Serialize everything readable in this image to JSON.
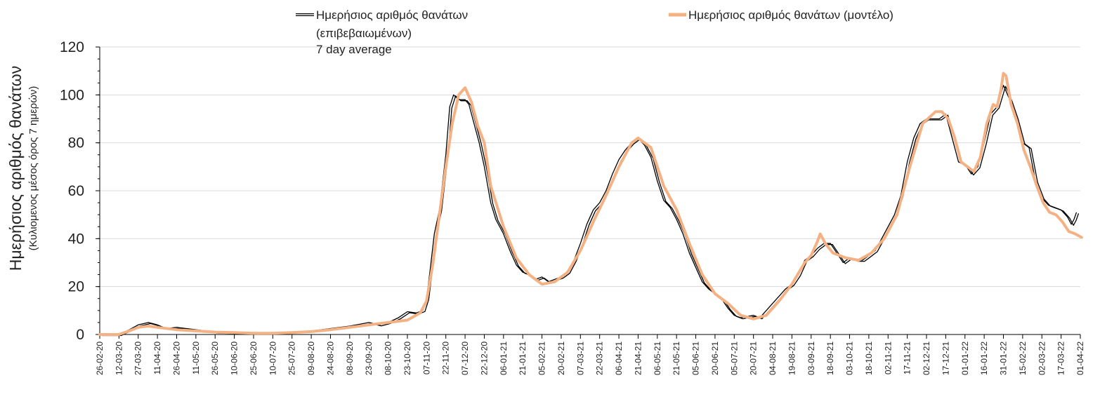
{
  "chart_data": {
    "type": "line",
    "ylabel": "Ημερήσιος αριθμός θανάτων",
    "ylabel_sub": "(Κυλιομενος μέσος όρος 7 ημερών)",
    "ylim": [
      0,
      120
    ],
    "yticks": [
      "0",
      "20",
      "40",
      "60",
      "80",
      "100",
      "120"
    ],
    "xticks": [
      "26-02-20",
      "12-03-20",
      "27-03-20",
      "11-04-20",
      "26-04-20",
      "11-05-20",
      "26-05-20",
      "10-06-20",
      "25-06-20",
      "10-07-20",
      "25-07-20",
      "09-08-20",
      "24-08-20",
      "08-09-20",
      "23-09-20",
      "08-10-20",
      "23-10-20",
      "07-11-20",
      "22-11-20",
      "07-12-20",
      "22-12-20",
      "06-01-21",
      "21-01-21",
      "05-02-21",
      "20-02-21",
      "07-03-21",
      "22-03-21",
      "06-04-21",
      "21-04-21",
      "06-05-21",
      "21-05-21",
      "05-06-21",
      "20-06-21",
      "05-07-21",
      "20-07-21",
      "04-08-21",
      "19-08-21",
      "03-09-21",
      "18-09-21",
      "03-10-21",
      "18-10-21",
      "02-11-21",
      "17-11-21",
      "02-12-21",
      "17-12-21",
      "01-01-22",
      "16-01-22",
      "31-01-22",
      "15-02-22",
      "02-03-22",
      "17-03-22",
      "01-04-22"
    ],
    "grid": true,
    "legend_position": "top",
    "series": [
      {
        "name": "Ημερήσιος αριθμός θανάτων (επιβεβαιωμένων) 7 day average",
        "legend_lines": [
          "Ημερήσιος αριθμός θανάτων",
          "(επιβεβαιωμένων)",
          "7 day average"
        ],
        "color": "#000000",
        "style": "double-line",
        "points": [
          [
            "26-02-20",
            0
          ],
          [
            "12-03-20",
            0
          ],
          [
            "20-03-20",
            2
          ],
          [
            "27-03-20",
            4
          ],
          [
            "04-04-20",
            5
          ],
          [
            "11-04-20",
            4
          ],
          [
            "18-04-20",
            2.5
          ],
          [
            "26-04-20",
            3
          ],
          [
            "11-05-20",
            2
          ],
          [
            "26-05-20",
            1
          ],
          [
            "10-06-20",
            0.8
          ],
          [
            "25-06-20",
            0.5
          ],
          [
            "10-07-20",
            0.5
          ],
          [
            "25-07-20",
            1
          ],
          [
            "09-08-20",
            1.5
          ],
          [
            "24-08-20",
            2.5
          ],
          [
            "08-09-20",
            3.5
          ],
          [
            "23-09-20",
            5
          ],
          [
            "01-10-20",
            4
          ],
          [
            "08-10-20",
            5
          ],
          [
            "16-10-20",
            7
          ],
          [
            "23-10-20",
            9.5
          ],
          [
            "30-10-20",
            9
          ],
          [
            "04-11-20",
            10
          ],
          [
            "07-11-20",
            15
          ],
          [
            "10-11-20",
            28
          ],
          [
            "13-11-20",
            42
          ],
          [
            "17-11-20",
            52
          ],
          [
            "22-11-20",
            75
          ],
          [
            "25-11-20",
            95
          ],
          [
            "28-11-20",
            100
          ],
          [
            "02-12-20",
            98
          ],
          [
            "07-12-20",
            98
          ],
          [
            "10-12-20",
            96
          ],
          [
            "15-12-20",
            86
          ],
          [
            "18-12-20",
            80
          ],
          [
            "22-12-20",
            70
          ],
          [
            "27-12-20",
            55
          ],
          [
            "31-12-20",
            48
          ],
          [
            "06-01-21",
            42
          ],
          [
            "11-01-21",
            35
          ],
          [
            "16-01-21",
            29
          ],
          [
            "21-01-21",
            26
          ],
          [
            "26-01-21",
            25
          ],
          [
            "31-01-21",
            23
          ],
          [
            "05-02-21",
            24
          ],
          [
            "10-02-21",
            22
          ],
          [
            "15-02-21",
            23
          ],
          [
            "20-02-21",
            24
          ],
          [
            "25-02-21",
            26
          ],
          [
            "02-03-21",
            31
          ],
          [
            "07-03-21",
            38
          ],
          [
            "12-03-21",
            46
          ],
          [
            "17-03-21",
            52
          ],
          [
            "22-03-21",
            55
          ],
          [
            "27-03-21",
            60
          ],
          [
            "01-04-21",
            67
          ],
          [
            "06-04-21",
            73
          ],
          [
            "11-04-21",
            77
          ],
          [
            "16-04-21",
            80
          ],
          [
            "21-04-21",
            82
          ],
          [
            "26-04-21",
            79
          ],
          [
            "01-05-21",
            74
          ],
          [
            "06-05-21",
            64
          ],
          [
            "11-05-21",
            56
          ],
          [
            "16-05-21",
            53
          ],
          [
            "21-05-21",
            48
          ],
          [
            "26-05-21",
            42
          ],
          [
            "31-05-21",
            34
          ],
          [
            "05-06-21",
            28
          ],
          [
            "10-06-21",
            22
          ],
          [
            "15-06-21",
            19
          ],
          [
            "20-06-21",
            17
          ],
          [
            "25-06-21",
            15
          ],
          [
            "30-06-21",
            11
          ],
          [
            "05-07-21",
            8
          ],
          [
            "10-07-21",
            7
          ],
          [
            "15-07-21",
            7.5
          ],
          [
            "20-07-21",
            8
          ],
          [
            "25-07-21",
            7
          ],
          [
            "30-07-21",
            10
          ],
          [
            "04-08-21",
            13
          ],
          [
            "09-08-21",
            16
          ],
          [
            "14-08-21",
            19
          ],
          [
            "19-08-21",
            21
          ],
          [
            "24-08-21",
            25
          ],
          [
            "29-08-21",
            31
          ],
          [
            "03-09-21",
            33
          ],
          [
            "08-09-21",
            36
          ],
          [
            "13-09-21",
            38
          ],
          [
            "18-09-21",
            38
          ],
          [
            "23-09-21",
            34
          ],
          [
            "28-09-21",
            30
          ],
          [
            "03-10-21",
            32
          ],
          [
            "08-10-21",
            31
          ],
          [
            "13-10-21",
            31
          ],
          [
            "18-10-21",
            33
          ],
          [
            "23-10-21",
            35
          ],
          [
            "28-10-21",
            40
          ],
          [
            "02-11-21",
            45
          ],
          [
            "07-11-21",
            50
          ],
          [
            "12-11-21",
            58
          ],
          [
            "17-11-21",
            72
          ],
          [
            "22-11-21",
            82
          ],
          [
            "27-11-21",
            88
          ],
          [
            "02-12-21",
            90
          ],
          [
            "07-12-21",
            90
          ],
          [
            "12-12-21",
            90
          ],
          [
            "17-12-21",
            92
          ],
          [
            "22-12-21",
            82
          ],
          [
            "27-12-21",
            72
          ],
          [
            "01-01-22",
            71
          ],
          [
            "06-01-22",
            67
          ],
          [
            "11-01-22",
            70
          ],
          [
            "16-01-22",
            80
          ],
          [
            "21-01-22",
            92
          ],
          [
            "26-01-22",
            95
          ],
          [
            "31-01-22",
            104
          ],
          [
            "05-02-22",
            98
          ],
          [
            "10-02-22",
            90
          ],
          [
            "15-02-22",
            80
          ],
          [
            "20-02-22",
            78
          ],
          [
            "25-02-22",
            64
          ],
          [
            "02-03-22",
            57
          ],
          [
            "07-03-22",
            54
          ],
          [
            "12-03-22",
            53
          ],
          [
            "17-03-22",
            52
          ],
          [
            "22-03-22",
            49
          ],
          [
            "25-03-22",
            46
          ],
          [
            "27-03-22",
            48
          ],
          [
            "29-03-22",
            51
          ]
        ]
      },
      {
        "name": "Ημερήσιος αριθμός θανάτων (μοντέλο)",
        "legend_lines": [
          "Ημερήσιος αριθμός θανάτων (μοντέλο)"
        ],
        "color": "#f4b183",
        "style": "thick-line",
        "points": [
          [
            "26-02-20",
            0
          ],
          [
            "12-03-20",
            0
          ],
          [
            "20-03-20",
            1.5
          ],
          [
            "27-03-20",
            3
          ],
          [
            "04-04-20",
            3.5
          ],
          [
            "11-04-20",
            3
          ],
          [
            "26-04-20",
            2
          ],
          [
            "11-05-20",
            1.5
          ],
          [
            "26-05-20",
            1
          ],
          [
            "10-06-20",
            0.8
          ],
          [
            "25-06-20",
            0.5
          ],
          [
            "10-07-20",
            0.5
          ],
          [
            "25-07-20",
            0.8
          ],
          [
            "09-08-20",
            1.2
          ],
          [
            "24-08-20",
            2
          ],
          [
            "08-09-20",
            3
          ],
          [
            "23-09-20",
            4
          ],
          [
            "08-10-20",
            5
          ],
          [
            "23-10-20",
            6
          ],
          [
            "02-11-20",
            9
          ],
          [
            "07-11-20",
            14
          ],
          [
            "12-11-20",
            30
          ],
          [
            "17-11-20",
            50
          ],
          [
            "22-11-20",
            70
          ],
          [
            "27-11-20",
            88
          ],
          [
            "02-12-20",
            100
          ],
          [
            "07-12-20",
            103
          ],
          [
            "12-12-20",
            97
          ],
          [
            "17-12-20",
            87
          ],
          [
            "22-12-20",
            80
          ],
          [
            "27-12-20",
            62
          ],
          [
            "06-01-21",
            45
          ],
          [
            "16-01-21",
            32
          ],
          [
            "26-01-21",
            25
          ],
          [
            "05-02-21",
            21
          ],
          [
            "15-02-21",
            22
          ],
          [
            "25-02-21",
            26
          ],
          [
            "07-03-21",
            35
          ],
          [
            "17-03-21",
            47
          ],
          [
            "27-03-21",
            58
          ],
          [
            "06-04-21",
            70
          ],
          [
            "16-04-21",
            80
          ],
          [
            "21-04-21",
            82
          ],
          [
            "01-05-21",
            78
          ],
          [
            "11-05-21",
            62
          ],
          [
            "21-05-21",
            52
          ],
          [
            "31-05-21",
            38
          ],
          [
            "10-06-21",
            25
          ],
          [
            "20-06-21",
            17
          ],
          [
            "30-06-21",
            13
          ],
          [
            "10-07-21",
            8
          ],
          [
            "20-07-21",
            6.5
          ],
          [
            "30-07-21",
            8
          ],
          [
            "09-08-21",
            14
          ],
          [
            "19-08-21",
            21
          ],
          [
            "29-08-21",
            30
          ],
          [
            "03-09-21",
            33
          ],
          [
            "08-09-21",
            39
          ],
          [
            "10-09-21",
            42
          ],
          [
            "14-09-21",
            38
          ],
          [
            "20-09-21",
            34
          ],
          [
            "30-09-21",
            32
          ],
          [
            "10-10-21",
            31
          ],
          [
            "20-10-21",
            34
          ],
          [
            "30-10-21",
            40
          ],
          [
            "09-11-21",
            50
          ],
          [
            "19-11-21",
            70
          ],
          [
            "29-11-21",
            88
          ],
          [
            "09-12-21",
            93
          ],
          [
            "14-12-21",
            93
          ],
          [
            "19-12-21",
            90
          ],
          [
            "24-12-21",
            82
          ],
          [
            "29-12-21",
            72
          ],
          [
            "03-01-22",
            70
          ],
          [
            "08-01-22",
            68
          ],
          [
            "13-01-22",
            74
          ],
          [
            "18-01-22",
            88
          ],
          [
            "23-01-22",
            96
          ],
          [
            "26-01-22",
            95
          ],
          [
            "29-01-22",
            102
          ],
          [
            "31-01-22",
            109
          ],
          [
            "02-02-22",
            108
          ],
          [
            "06-02-22",
            96
          ],
          [
            "11-02-22",
            88
          ],
          [
            "16-02-22",
            77
          ],
          [
            "21-02-22",
            70
          ],
          [
            "26-02-22",
            62
          ],
          [
            "03-03-22",
            55
          ],
          [
            "08-03-22",
            51
          ],
          [
            "13-03-22",
            50
          ],
          [
            "18-03-22",
            47
          ],
          [
            "23-03-22",
            43
          ],
          [
            "28-03-22",
            42
          ],
          [
            "02-04-22",
            40.5
          ]
        ]
      }
    ]
  }
}
